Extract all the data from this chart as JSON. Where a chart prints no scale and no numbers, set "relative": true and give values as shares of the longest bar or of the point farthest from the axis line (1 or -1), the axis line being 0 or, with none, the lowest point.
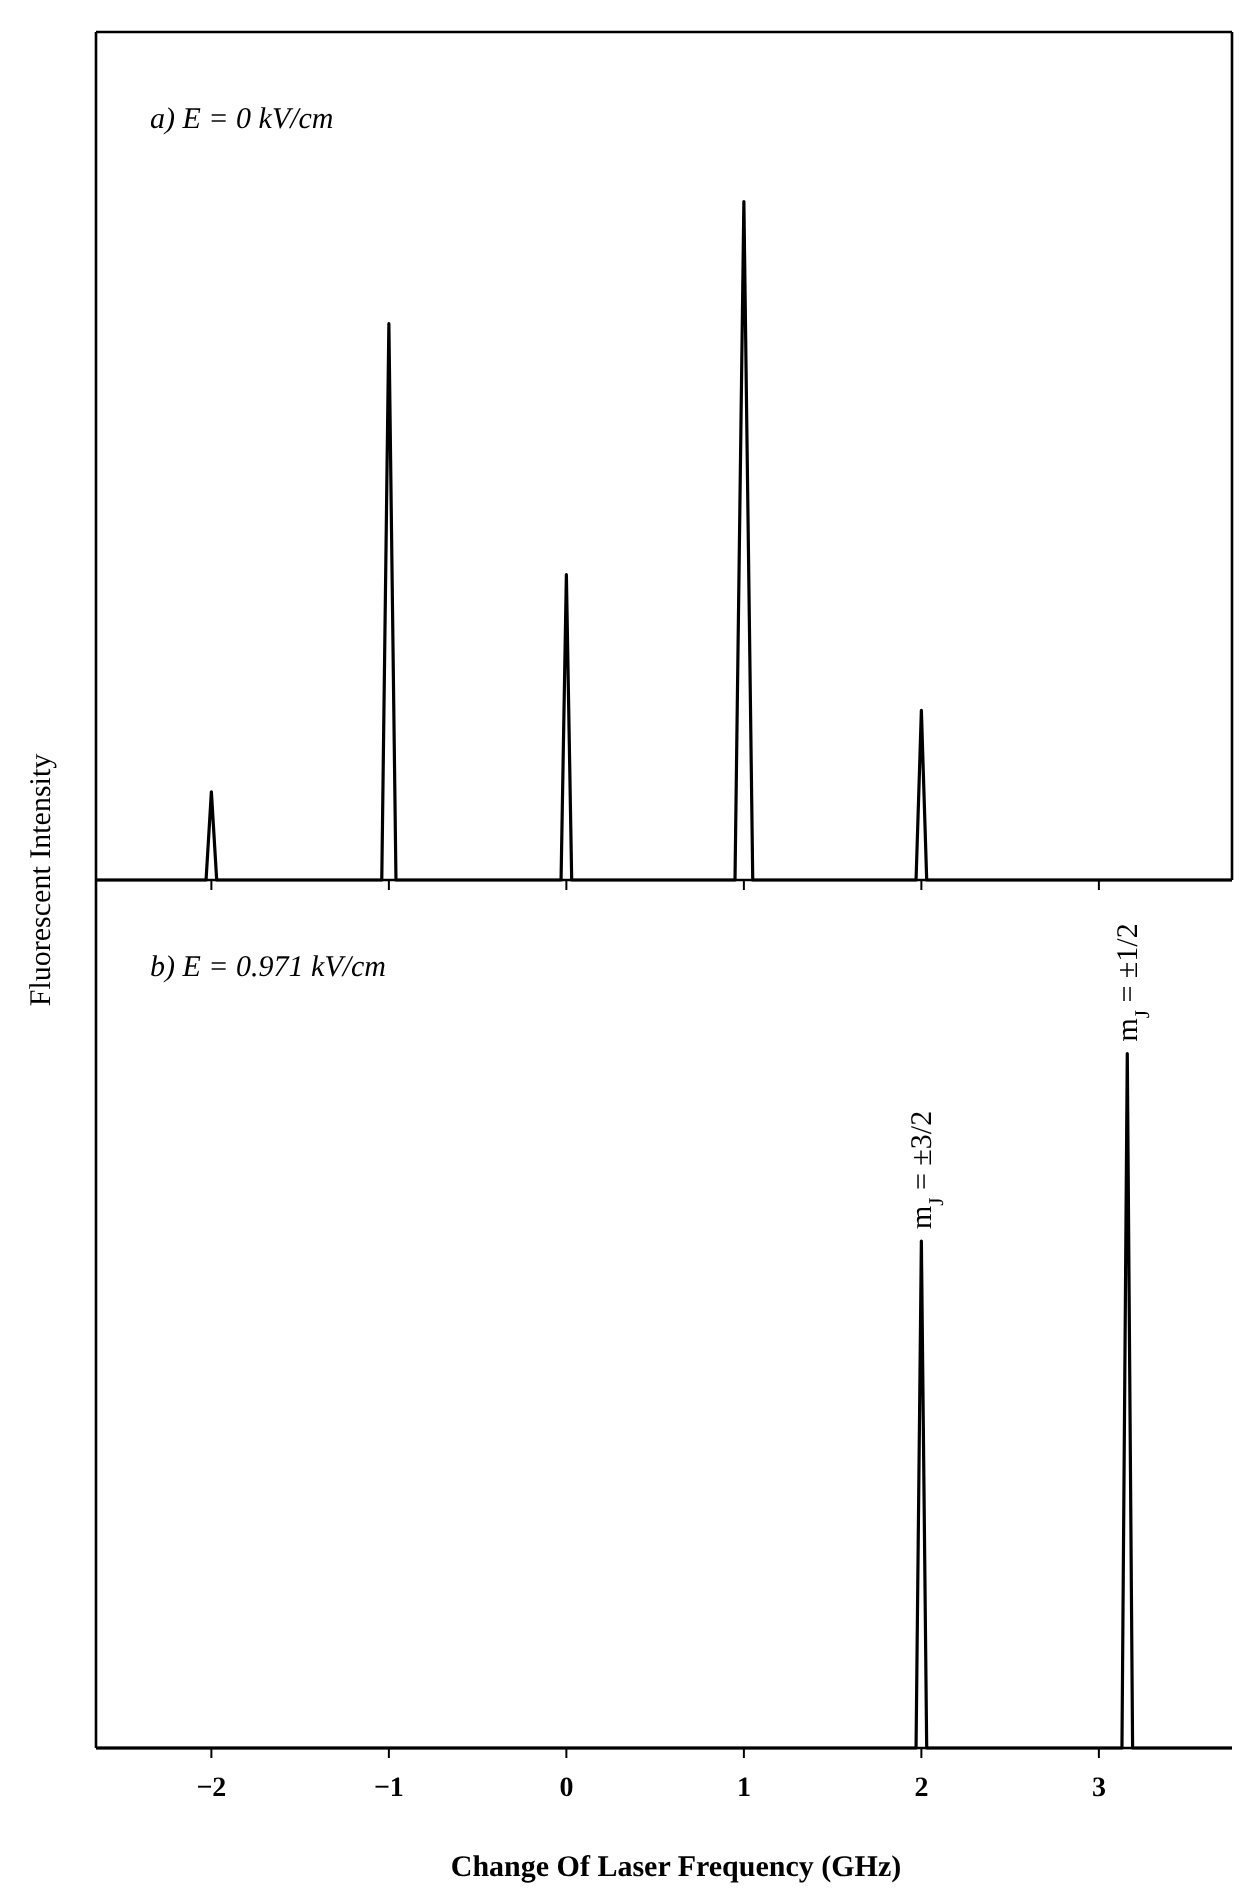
{
  "chart_data": [
    {
      "type": "line",
      "title": "a) E = 0 kV/cm",
      "ylabel": "Fluorescent Intensity",
      "relative": true,
      "xlim": [
        -2.65,
        3.75
      ],
      "xticks": [
        -2,
        -1,
        0,
        1,
        2,
        3
      ],
      "tick_labels": false,
      "x": [
        -2.65,
        -2.03,
        -2.0,
        -1.97,
        -1.04,
        -1.0,
        -0.96,
        -0.03,
        0.0,
        0.03,
        0.95,
        1.0,
        1.05,
        1.97,
        2.0,
        2.03,
        3.75
      ],
      "series": [
        {
          "color": "#000000",
          "values": [
            0,
            0,
            0.13,
            0,
            0,
            0.82,
            0,
            0,
            0.45,
            0,
            0,
            1,
            0,
            0,
            0.25,
            0,
            0
          ]
        }
      ]
    },
    {
      "type": "line",
      "title": "b) E = 0.971 kV/cm",
      "xlabel": "Change Of Laser Frequency (GHz)",
      "relative": true,
      "xlim": [
        -2.65,
        3.75
      ],
      "xticks": [
        {
          "value": -2,
          "label": "−2"
        },
        {
          "value": -1,
          "label": "−1"
        },
        0,
        1,
        2,
        3
      ],
      "x": [
        -2.65,
        1.97,
        2.0,
        2.03,
        3.13,
        3.16,
        3.19,
        3.75
      ],
      "series": [
        {
          "color": "#000000",
          "values": [
            0,
            0,
            0.73,
            0,
            0,
            1,
            0,
            0
          ]
        }
      ],
      "annotations": [
        {
          "text": "m$_{J}$ = ±3/2",
          "x": 2.0,
          "y": 0.73
        },
        {
          "text": "m$_{J}$ = ±1/2",
          "x": 3.16,
          "y": 1
        }
      ]
    }
  ]
}
